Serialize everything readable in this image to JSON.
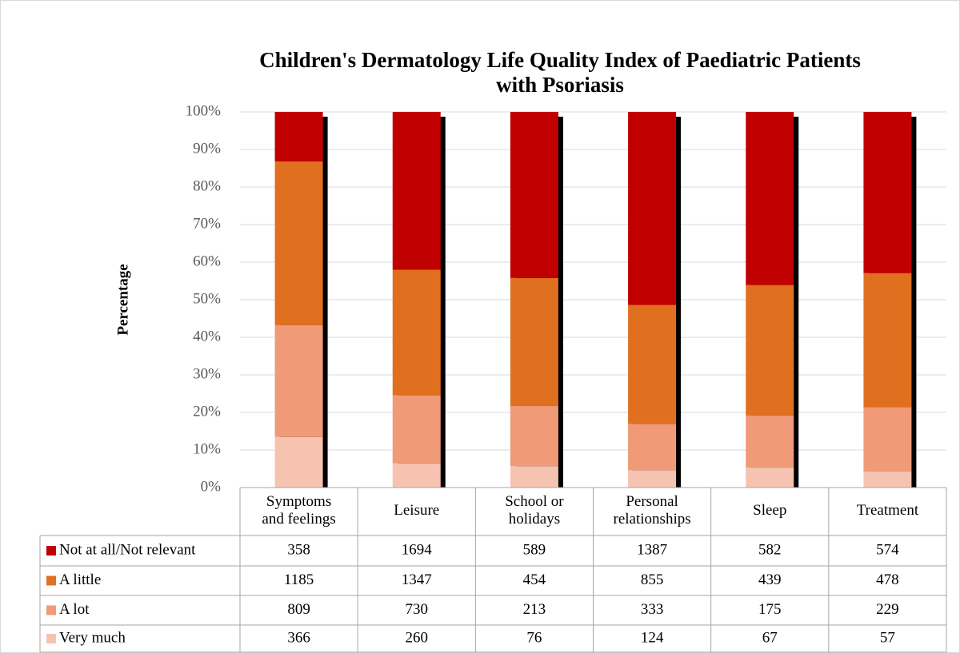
{
  "chart_data": {
    "type": "bar",
    "stacking": "percent",
    "title": "Children's Dermatology Life Quality Index of Paediatric Patients with Psoriasis",
    "y_label": "Percentage",
    "categories": [
      "Symptoms\nand feelings",
      "Leisure",
      "School or\nholidays",
      "Personal\nrelationships",
      "Sleep",
      "Treatment"
    ],
    "series": [
      {
        "name": "Not at all/Not relevant",
        "color": "#c00000",
        "values": [
          358,
          1694,
          589,
          1387,
          582,
          574
        ]
      },
      {
        "name": "A little",
        "color": "#e0701f",
        "values": [
          1185,
          1347,
          454,
          855,
          439,
          478
        ]
      },
      {
        "name": "A lot",
        "color": "#f09a78",
        "values": [
          809,
          730,
          213,
          333,
          175,
          229
        ]
      },
      {
        "name": "Very much",
        "color": "#f6c3b1",
        "values": [
          366,
          260,
          76,
          124,
          67,
          57
        ]
      }
    ],
    "ylim": [
      0,
      100
    ],
    "yticks": [
      {
        "value": 0,
        "label": "0%"
      },
      {
        "value": 10,
        "label": "10%"
      },
      {
        "value": 20,
        "label": "20%"
      },
      {
        "value": 30,
        "label": "30%"
      },
      {
        "value": 40,
        "label": "40%"
      },
      {
        "value": 50,
        "label": "50%"
      },
      {
        "value": 60,
        "label": "60%"
      },
      {
        "value": 70,
        "label": "70%"
      },
      {
        "value": 80,
        "label": "80%"
      },
      {
        "value": 90,
        "label": "90%"
      },
      {
        "value": 100,
        "label": "100%"
      }
    ],
    "grid": true,
    "legend": "table"
  }
}
